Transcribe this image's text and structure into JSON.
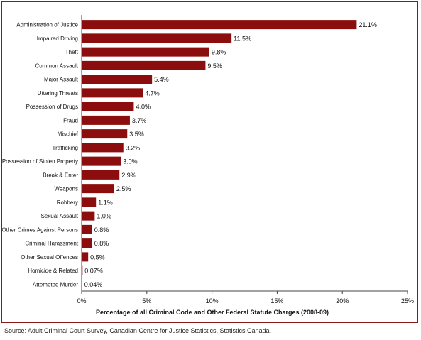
{
  "chart_data": {
    "type": "bar",
    "orientation": "horizontal",
    "categories": [
      "Administration of Justice",
      "Impaired Driving",
      "Theft",
      "Common Assault",
      "Major Assault",
      "Uttering Threats",
      "Possession of Drugs",
      "Fraud",
      "Mischief",
      "Trafficking",
      "Possession of Stolen Property",
      "Break & Enter",
      "Weapons",
      "Robbery",
      "Sexual Assault",
      "Other Crimes Against Persons",
      "Criminal Harassment",
      "Other Sexual Offences",
      "Homicide & Related",
      "Attempted Murder"
    ],
    "values": [
      21.1,
      11.5,
      9.8,
      9.5,
      5.4,
      4.7,
      4.0,
      3.7,
      3.5,
      3.2,
      3.0,
      2.9,
      2.5,
      1.1,
      1.0,
      0.8,
      0.8,
      0.5,
      0.07,
      0.04
    ],
    "value_labels": [
      "21.1%",
      "11.5%",
      "9.8%",
      "9.5%",
      "5.4%",
      "4.7%",
      "4.0%",
      "3.7%",
      "3.5%",
      "3.2%",
      "3.0%",
      "2.9%",
      "2.5%",
      "1.1%",
      "1.0%",
      "0.8%",
      "0.8%",
      "0.5%",
      "0.07%",
      "0.04%"
    ],
    "xlabel": "Percentage of all Criminal Code and Other Federal Statute Charges (2008-09)",
    "ylabel": "",
    "xlim": [
      0,
      25
    ],
    "xticks": [
      0,
      5,
      10,
      15,
      20,
      25
    ],
    "xtick_labels": [
      "0%",
      "5%",
      "10%",
      "15%",
      "20%",
      "25%"
    ],
    "grid": false,
    "bar_color": "#8b0d0d"
  },
  "source": "Source:  Adult Criminal Court Survey, Canadian Centre for Justice Statistics, Statistics Canada."
}
